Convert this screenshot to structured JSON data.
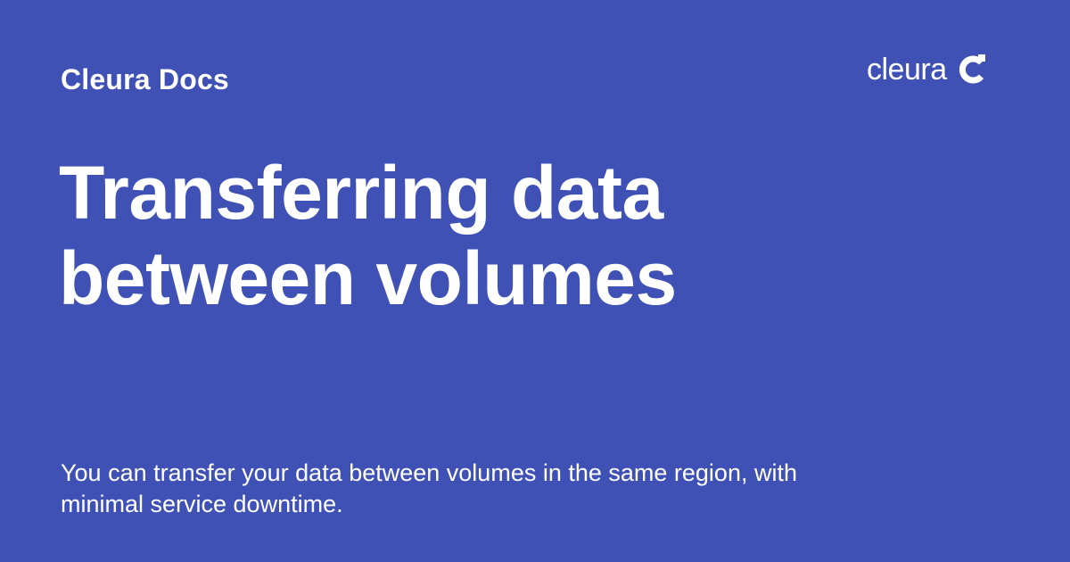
{
  "header": {
    "site_name": "Cleura Docs",
    "logo_text": "cleura",
    "logo_icon": "cleura-c-icon"
  },
  "main": {
    "title": "Transferring data between volumes",
    "description": "You can transfer your data between volumes in the same region, with minimal service downtime."
  },
  "colors": {
    "background": "#3f51b5",
    "text": "#ffffff"
  }
}
